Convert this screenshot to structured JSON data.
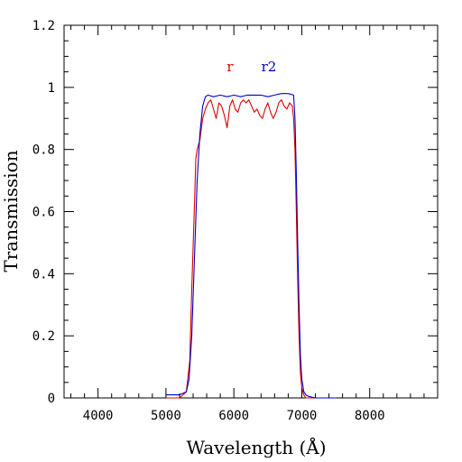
{
  "chart_data": {
    "type": "line",
    "xlabel": "Wavelength (Å)",
    "ylabel": "Transmission",
    "xlim": [
      3500,
      9000
    ],
    "ylim": [
      0,
      1.2
    ],
    "x_ticks": [
      4000,
      5000,
      6000,
      7000,
      8000
    ],
    "x_tick_labels": [
      "4000",
      "5000",
      "6000",
      "7000",
      "8000"
    ],
    "y_ticks": [
      0,
      0.2,
      0.4,
      0.6,
      0.8,
      1.0,
      1.2
    ],
    "y_tick_labels": [
      "0",
      "0.2",
      "0.4",
      "0.6",
      "0.8",
      "1",
      "1.2"
    ],
    "grid": false,
    "legend_position": "top-center",
    "series": [
      {
        "name": "r",
        "color": "#e00000",
        "x": [
          5000,
          5200,
          5300,
          5350,
          5380,
          5420,
          5440,
          5460,
          5500,
          5540,
          5580,
          5620,
          5660,
          5700,
          5740,
          5780,
          5820,
          5860,
          5900,
          5940,
          5980,
          6020,
          6060,
          6100,
          6140,
          6180,
          6220,
          6260,
          6300,
          6340,
          6380,
          6420,
          6460,
          6500,
          6540,
          6580,
          6620,
          6660,
          6700,
          6740,
          6780,
          6820,
          6860,
          6880,
          6900,
          6920,
          6940,
          6960,
          6980,
          7000,
          7030,
          7060,
          7100,
          7200,
          7500
        ],
        "y": [
          0.0,
          0.0,
          0.02,
          0.12,
          0.35,
          0.62,
          0.77,
          0.8,
          0.83,
          0.9,
          0.93,
          0.95,
          0.96,
          0.93,
          0.9,
          0.95,
          0.94,
          0.91,
          0.87,
          0.94,
          0.96,
          0.93,
          0.92,
          0.95,
          0.96,
          0.95,
          0.96,
          0.94,
          0.92,
          0.93,
          0.91,
          0.9,
          0.93,
          0.95,
          0.92,
          0.9,
          0.92,
          0.95,
          0.96,
          0.94,
          0.93,
          0.95,
          0.94,
          0.9,
          0.8,
          0.6,
          0.38,
          0.2,
          0.08,
          0.03,
          0.01,
          0.0,
          0.0,
          0.0,
          0.0
        ]
      },
      {
        "name": "r2",
        "color": "#0000cc",
        "x": [
          5000,
          5200,
          5300,
          5340,
          5380,
          5420,
          5460,
          5500,
          5540,
          5580,
          5620,
          5700,
          5800,
          5900,
          6000,
          6100,
          6200,
          6300,
          6400,
          6500,
          6600,
          6700,
          6800,
          6880,
          6900,
          6920,
          6940,
          6960,
          6980,
          7000,
          7030,
          7060,
          7100,
          7200,
          7500
        ],
        "y": [
          0.01,
          0.01,
          0.02,
          0.06,
          0.2,
          0.45,
          0.7,
          0.85,
          0.94,
          0.97,
          0.975,
          0.97,
          0.975,
          0.97,
          0.975,
          0.97,
          0.975,
          0.975,
          0.975,
          0.97,
          0.975,
          0.98,
          0.98,
          0.975,
          0.9,
          0.72,
          0.5,
          0.3,
          0.14,
          0.06,
          0.02,
          0.01,
          0.005,
          0.0,
          0.0
        ]
      }
    ]
  }
}
